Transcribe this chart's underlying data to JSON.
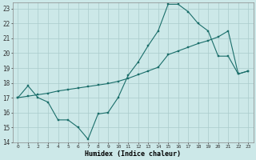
{
  "xlabel": "Humidex (Indice chaleur)",
  "bg_color": "#cce8e8",
  "grid_color": "#aacccc",
  "line_color": "#1a6e6a",
  "xlim": [
    -0.5,
    23.5
  ],
  "ylim": [
    14,
    23.4
  ],
  "xtick_labels": [
    "0",
    "1",
    "2",
    "3",
    "4",
    "5",
    "6",
    "7",
    "8",
    "9",
    "10",
    "11",
    "12",
    "13",
    "14",
    "15",
    "16",
    "17",
    "18",
    "19",
    "20",
    "21",
    "22",
    "23"
  ],
  "ytick_labels": [
    "14",
    "15",
    "16",
    "17",
    "18",
    "19",
    "20",
    "21",
    "22",
    "23"
  ],
  "series1_x": [
    0,
    1,
    2,
    3,
    4,
    5,
    6,
    7,
    8,
    9,
    10,
    11,
    12,
    13,
    14,
    15,
    16,
    17,
    18,
    19,
    20,
    21,
    22,
    23
  ],
  "series1_y": [
    17.0,
    17.8,
    17.0,
    16.7,
    15.5,
    15.5,
    15.0,
    14.2,
    15.9,
    16.0,
    17.0,
    18.5,
    19.4,
    20.5,
    21.5,
    23.3,
    23.3,
    22.8,
    22.0,
    21.5,
    19.8,
    19.8,
    18.6,
    18.8
  ],
  "series2_x": [
    0,
    1,
    2,
    3,
    4,
    5,
    6,
    7,
    8,
    9,
    10,
    11,
    12,
    13,
    14,
    15,
    16,
    17,
    18,
    19,
    20,
    21,
    22,
    23
  ],
  "series2_y": [
    17.0,
    17.1,
    17.2,
    17.3,
    17.45,
    17.55,
    17.65,
    17.75,
    17.85,
    17.95,
    18.1,
    18.3,
    18.55,
    18.8,
    19.05,
    19.9,
    20.15,
    20.4,
    20.65,
    20.85,
    21.1,
    21.5,
    18.6,
    18.8
  ]
}
